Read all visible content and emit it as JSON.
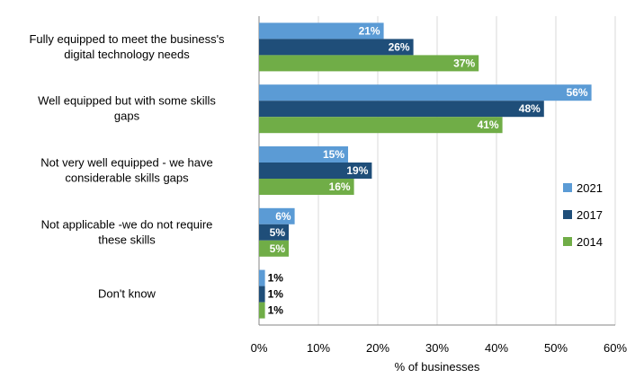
{
  "chart_data": {
    "type": "bar",
    "orientation": "horizontal",
    "categories": [
      "Fully equipped to meet the business's digital technology needs",
      "Well equipped but with some skills gaps",
      "Not very well equipped - we have considerable skills gaps",
      "Not applicable -we do not require these skills",
      "Don't know"
    ],
    "series": [
      {
        "name": "2021",
        "color": "#5b9bd5",
        "values": [
          21,
          56,
          15,
          6,
          1
        ]
      },
      {
        "name": "2017",
        "color": "#1f4e79",
        "values": [
          26,
          48,
          19,
          5,
          1
        ]
      },
      {
        "name": "2014",
        "color": "#70ad47",
        "values": [
          37,
          41,
          16,
          5,
          1
        ]
      }
    ],
    "data_labels": [
      [
        "21%",
        "56%",
        "15%",
        "6%",
        "1%"
      ],
      [
        "26%",
        "48%",
        "19%",
        "5%",
        "1%"
      ],
      [
        "37%",
        "41%",
        "16%",
        "5%",
        "1%"
      ]
    ],
    "xlabel": "% of businesses",
    "xlim": [
      0,
      60
    ],
    "xticks": [
      0,
      10,
      20,
      30,
      40,
      50,
      60
    ],
    "xtick_labels": [
      "0%",
      "10%",
      "20%",
      "30%",
      "40%",
      "50%",
      "60%"
    ],
    "grid": "vertical",
    "legend_position": "right"
  }
}
